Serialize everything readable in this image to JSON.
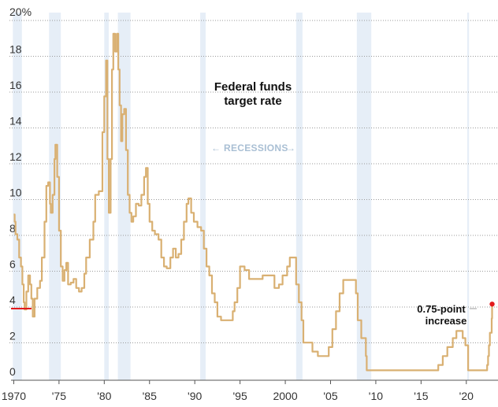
{
  "chart_data": {
    "type": "line",
    "title": [
      "Federal funds",
      "target rate"
    ],
    "y_unit_label": "20%",
    "ylim": [
      0,
      20
    ],
    "xlim": [
      1969.7,
      2023.5
    ],
    "y_ticks": [
      {
        "value": 0,
        "label": "0"
      },
      {
        "value": 2,
        "label": "2"
      },
      {
        "value": 4,
        "label": "4"
      },
      {
        "value": 6,
        "label": "6"
      },
      {
        "value": 8,
        "label": "8"
      },
      {
        "value": 10,
        "label": "10"
      },
      {
        "value": 12,
        "label": "12"
      },
      {
        "value": 14,
        "label": "14"
      },
      {
        "value": 16,
        "label": "16"
      },
      {
        "value": 18,
        "label": "18"
      }
    ],
    "x_ticks": [
      {
        "value": 1970,
        "label": "1970"
      },
      {
        "value": 1975,
        "label": "'75"
      },
      {
        "value": 1980,
        "label": "'80"
      },
      {
        "value": 1985,
        "label": "'85"
      },
      {
        "value": 1990,
        "label": "'90"
      },
      {
        "value": 1995,
        "label": "'95"
      },
      {
        "value": 2000,
        "label": "2000"
      },
      {
        "value": 2005,
        "label": "'05"
      },
      {
        "value": 2010,
        "label": "'10"
      },
      {
        "value": 2015,
        "label": "'15"
      },
      {
        "value": 2020,
        "label": "'20"
      }
    ],
    "grid": "horizontal dotted",
    "recessions_label": "RECESSIONS",
    "recessions": [
      [
        1969.9,
        1970.9
      ],
      [
        1973.9,
        1975.2
      ],
      [
        1980.0,
        1980.5
      ],
      [
        1981.5,
        1982.9
      ],
      [
        1990.6,
        1991.2
      ],
      [
        2001.2,
        2001.9
      ],
      [
        2007.9,
        2009.5
      ],
      [
        2020.1,
        2020.3
      ]
    ],
    "annotation": {
      "text": [
        "0.75-point",
        "increase"
      ],
      "x": 2022.5,
      "y": 3.9
    },
    "series": [
      {
        "color": "#d9b072",
        "points": [
          [
            1970.0,
            8.9
          ],
          [
            1970.1,
            8.5
          ],
          [
            1970.2,
            7.8
          ],
          [
            1970.4,
            7.5
          ],
          [
            1970.6,
            6.5
          ],
          [
            1970.8,
            6.0
          ],
          [
            1970.95,
            5.0
          ],
          [
            1971.1,
            4.0
          ],
          [
            1971.2,
            3.6
          ],
          [
            1971.4,
            4.6
          ],
          [
            1971.6,
            5.5
          ],
          [
            1971.8,
            5.0
          ],
          [
            1971.95,
            4.2
          ],
          [
            1972.1,
            3.2
          ],
          [
            1972.3,
            4.2
          ],
          [
            1972.6,
            4.8
          ],
          [
            1972.9,
            5.2
          ],
          [
            1973.1,
            6.5
          ],
          [
            1973.4,
            8.5
          ],
          [
            1973.6,
            10.5
          ],
          [
            1973.8,
            10.7
          ],
          [
            1974.0,
            9.5
          ],
          [
            1974.1,
            9.0
          ],
          [
            1974.3,
            10.0
          ],
          [
            1974.5,
            12.0
          ],
          [
            1974.6,
            12.8
          ],
          [
            1974.8,
            11.0
          ],
          [
            1975.0,
            8.0
          ],
          [
            1975.2,
            6.0
          ],
          [
            1975.4,
            5.2
          ],
          [
            1975.6,
            5.8
          ],
          [
            1975.8,
            6.2
          ],
          [
            1976.0,
            5.0
          ],
          [
            1976.3,
            5.1
          ],
          [
            1976.6,
            5.3
          ],
          [
            1976.9,
            4.8
          ],
          [
            1977.2,
            4.6
          ],
          [
            1977.5,
            4.8
          ],
          [
            1977.8,
            5.6
          ],
          [
            1978.0,
            6.5
          ],
          [
            1978.4,
            7.5
          ],
          [
            1978.8,
            8.5
          ],
          [
            1979.0,
            10.0
          ],
          [
            1979.4,
            10.2
          ],
          [
            1979.8,
            13.5
          ],
          [
            1980.0,
            15.5
          ],
          [
            1980.2,
            17.5
          ],
          [
            1980.35,
            12.0
          ],
          [
            1980.5,
            9.0
          ],
          [
            1980.7,
            12.0
          ],
          [
            1980.85,
            17.0
          ],
          [
            1981.0,
            19.0
          ],
          [
            1981.2,
            18.0
          ],
          [
            1981.4,
            19.0
          ],
          [
            1981.55,
            17.0
          ],
          [
            1981.7,
            15.0
          ],
          [
            1981.85,
            13.0
          ],
          [
            1982.0,
            14.5
          ],
          [
            1982.2,
            14.8
          ],
          [
            1982.4,
            12.5
          ],
          [
            1982.6,
            10.0
          ],
          [
            1982.8,
            9.0
          ],
          [
            1983.0,
            8.5
          ],
          [
            1983.2,
            8.8
          ],
          [
            1983.5,
            9.5
          ],
          [
            1983.8,
            9.4
          ],
          [
            1984.1,
            10.0
          ],
          [
            1984.4,
            11.0
          ],
          [
            1984.6,
            11.5
          ],
          [
            1984.8,
            9.5
          ],
          [
            1985.0,
            8.5
          ],
          [
            1985.3,
            8.0
          ],
          [
            1985.6,
            7.8
          ],
          [
            1986.0,
            7.5
          ],
          [
            1986.3,
            6.5
          ],
          [
            1986.6,
            6.0
          ],
          [
            1986.9,
            5.9
          ],
          [
            1987.3,
            6.5
          ],
          [
            1987.6,
            7.0
          ],
          [
            1987.9,
            6.5
          ],
          [
            1988.2,
            6.7
          ],
          [
            1988.5,
            7.5
          ],
          [
            1988.8,
            8.5
          ],
          [
            1989.1,
            9.5
          ],
          [
            1989.3,
            9.8
          ],
          [
            1989.6,
            9.0
          ],
          [
            1989.9,
            8.5
          ],
          [
            1990.3,
            8.2
          ],
          [
            1990.7,
            8.0
          ],
          [
            1991.0,
            7.0
          ],
          [
            1991.3,
            6.0
          ],
          [
            1991.6,
            5.5
          ],
          [
            1991.9,
            4.5
          ],
          [
            1992.2,
            4.0
          ],
          [
            1992.5,
            3.2
          ],
          [
            1992.9,
            3.0
          ],
          [
            1993.5,
            3.0
          ],
          [
            1994.0,
            3.0
          ],
          [
            1994.2,
            3.5
          ],
          [
            1994.4,
            4.0
          ],
          [
            1994.7,
            4.8
          ],
          [
            1995.0,
            6.0
          ],
          [
            1995.5,
            5.8
          ],
          [
            1996.0,
            5.3
          ],
          [
            1997.0,
            5.3
          ],
          [
            1997.5,
            5.5
          ],
          [
            1998.5,
            5.5
          ],
          [
            1998.8,
            4.8
          ],
          [
            1999.3,
            5.0
          ],
          [
            1999.7,
            5.5
          ],
          [
            2000.2,
            6.0
          ],
          [
            2000.5,
            6.5
          ],
          [
            2001.0,
            6.5
          ],
          [
            2001.2,
            5.0
          ],
          [
            2001.5,
            4.0
          ],
          [
            2001.8,
            3.0
          ],
          [
            2002.0,
            1.75
          ],
          [
            2002.9,
            1.75
          ],
          [
            2003.0,
            1.25
          ],
          [
            2003.6,
            1.0
          ],
          [
            2004.5,
            1.0
          ],
          [
            2004.8,
            1.5
          ],
          [
            2005.2,
            2.5
          ],
          [
            2005.6,
            3.5
          ],
          [
            2006.0,
            4.5
          ],
          [
            2006.4,
            5.25
          ],
          [
            2007.5,
            5.25
          ],
          [
            2007.8,
            4.5
          ],
          [
            2008.0,
            3.0
          ],
          [
            2008.4,
            2.0
          ],
          [
            2008.9,
            1.0
          ],
          [
            2009.0,
            0.2
          ],
          [
            2015.9,
            0.2
          ],
          [
            2016.9,
            0.5
          ],
          [
            2017.4,
            1.0
          ],
          [
            2017.9,
            1.5
          ],
          [
            2018.5,
            2.0
          ],
          [
            2018.9,
            2.4
          ],
          [
            2019.4,
            2.4
          ],
          [
            2019.6,
            2.0
          ],
          [
            2019.9,
            1.6
          ],
          [
            2020.1,
            1.6
          ],
          [
            2020.2,
            0.2
          ],
          [
            2022.1,
            0.2
          ],
          [
            2022.3,
            0.5
          ],
          [
            2022.4,
            1.0
          ],
          [
            2022.5,
            1.6
          ],
          [
            2022.6,
            2.3
          ],
          [
            2022.8,
            3.1
          ],
          [
            2022.85,
            3.9
          ]
        ]
      }
    ]
  }
}
